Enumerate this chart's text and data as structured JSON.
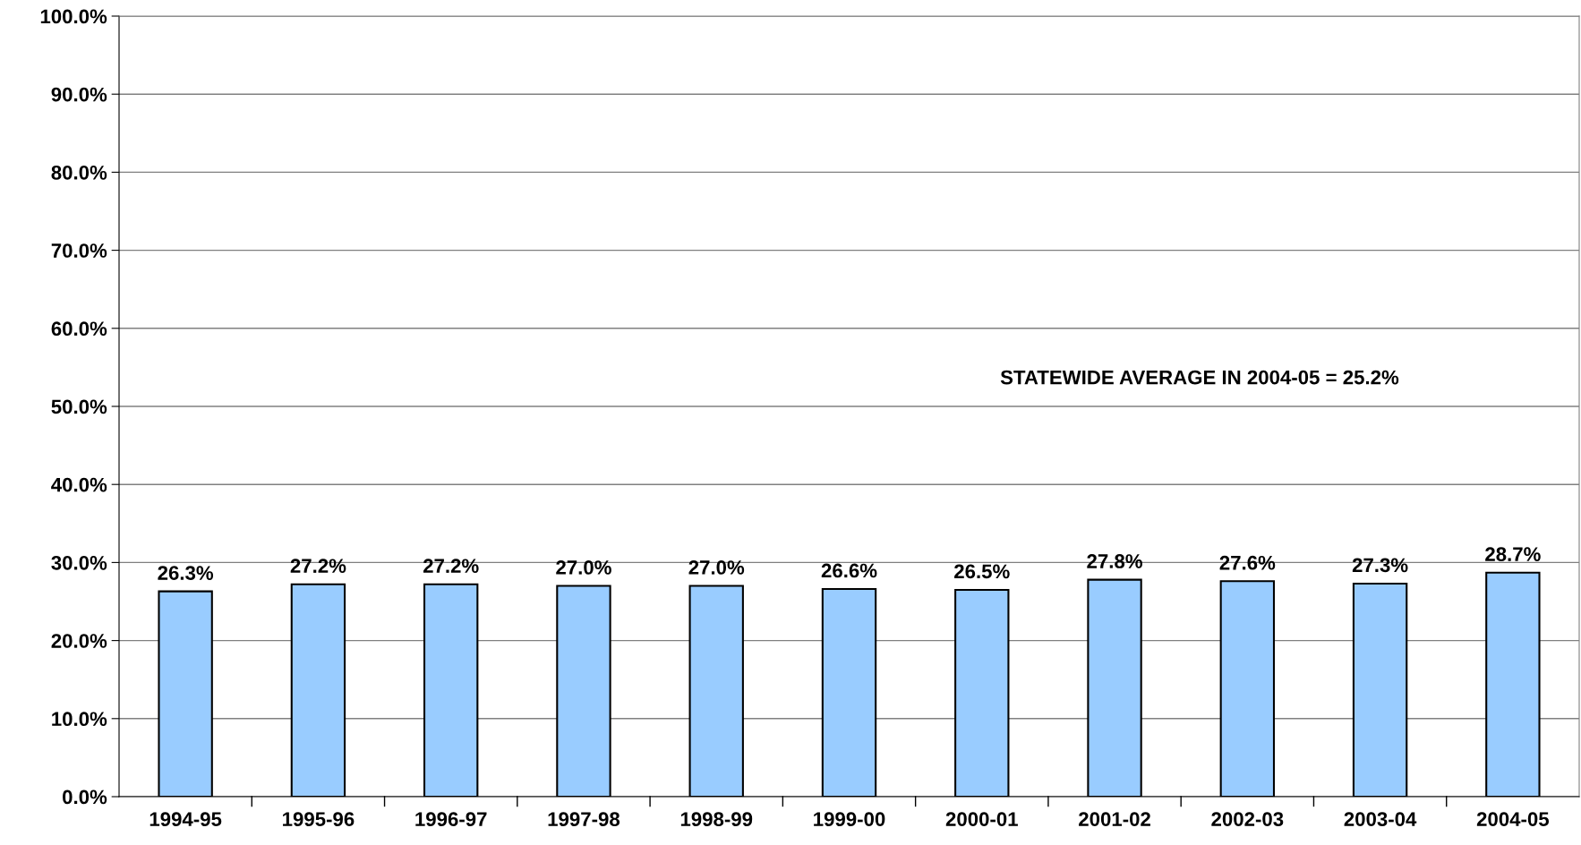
{
  "chart_data": {
    "type": "bar",
    "categories": [
      "1994-95",
      "1995-96",
      "1996-97",
      "1997-98",
      "1998-99",
      "1999-00",
      "2000-01",
      "2001-02",
      "2002-03",
      "2003-04",
      "2004-05"
    ],
    "values": [
      26.3,
      27.2,
      27.2,
      27.0,
      27.0,
      26.6,
      26.5,
      27.8,
      27.6,
      27.3,
      28.7
    ],
    "value_labels": [
      "26.3%",
      "27.2%",
      "27.2%",
      "27.0%",
      "27.0%",
      "26.6%",
      "26.5%",
      "27.8%",
      "27.6%",
      "27.3%",
      "28.7%"
    ],
    "color": "#99ccff",
    "ylim": [
      0,
      100
    ],
    "yticks": [
      {
        "value": 0,
        "label": "0.0%"
      },
      {
        "value": 10,
        "label": "10.0%"
      },
      {
        "value": 20,
        "label": "20.0%"
      },
      {
        "value": 30,
        "label": "30.0%"
      },
      {
        "value": 40,
        "label": "40.0%"
      },
      {
        "value": 50,
        "label": "50.0%"
      },
      {
        "value": 60,
        "label": "60.0%"
      },
      {
        "value": 70,
        "label": "70.0%"
      },
      {
        "value": 80,
        "label": "80.0%"
      },
      {
        "value": 90,
        "label": "90.0%"
      },
      {
        "value": 100,
        "label": "100.0%"
      }
    ],
    "grid": "y",
    "annotations": [
      "STATEWIDE AVERAGE IN 2004-05 = 25.2%"
    ]
  }
}
